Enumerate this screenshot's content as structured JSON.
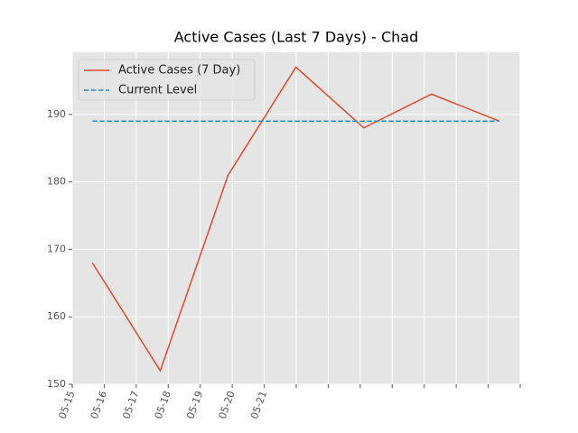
{
  "chart_data": {
    "type": "line",
    "title": "Active Cases (Last 7 Days) - Chad",
    "series": [
      {
        "name": "Active Cases (7 Day)",
        "color": "#E24A33",
        "style": "solid",
        "x": [
          0.63,
          2.75,
          4.87,
          6.99,
          9.11,
          11.23,
          13.35
        ],
        "values": [
          168,
          152,
          181,
          197,
          188,
          193,
          189
        ]
      },
      {
        "name": "Current Level",
        "color": "#348ABD",
        "style": "dashed",
        "x": [
          0.63,
          13.35
        ],
        "values": [
          189,
          189
        ]
      }
    ],
    "xlim": [
      0,
      14
    ],
    "xticks": [
      {
        "value": 0,
        "label": "05-15"
      },
      {
        "value": 1,
        "label": "05-16"
      },
      {
        "value": 2,
        "label": "05-17"
      },
      {
        "value": 3,
        "label": "05-18"
      },
      {
        "value": 4,
        "label": "05-19"
      },
      {
        "value": 5,
        "label": "05-20"
      },
      {
        "value": 6,
        "label": "05-21"
      },
      {
        "value": 7,
        "label": null
      },
      {
        "value": 8,
        "label": null
      },
      {
        "value": 9,
        "label": null
      },
      {
        "value": 10,
        "label": null
      },
      {
        "value": 11,
        "label": null
      },
      {
        "value": 12,
        "label": null
      },
      {
        "value": 13,
        "label": null
      },
      {
        "value": 14,
        "label": null
      }
    ],
    "ylim": [
      150,
      199.2
    ],
    "yticks": [
      150,
      160,
      170,
      180,
      190
    ],
    "grid": true,
    "legend": "upper-left",
    "background": "#E5E5E5"
  }
}
